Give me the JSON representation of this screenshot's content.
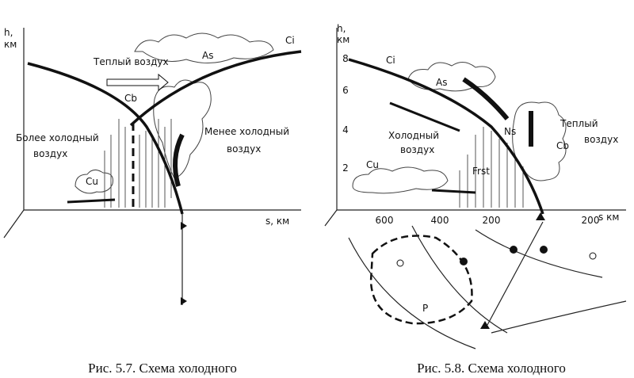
{
  "figure_left": {
    "axis_y": [
      "h,",
      "км"
    ],
    "axis_x": "s, км",
    "warm_air": "Теплый воздух",
    "as": "As",
    "ci": "Ci",
    "cb": "Cb",
    "cu": "Cu",
    "colder_air": [
      "Более холодный",
      "воздух"
    ],
    "less_cold_air": [
      "Менее холодный",
      "воздух"
    ],
    "caption": "Рис. 5.7. Схема холодного"
  },
  "figure_right": {
    "axis_y": [
      "h,",
      "км"
    ],
    "yticks": [
      "8",
      "6",
      "4",
      "2"
    ],
    "xticks": [
      "600",
      "400",
      "200",
      "200"
    ],
    "axis_x": "s км",
    "ci": "Ci",
    "as": "As",
    "ns": "Ns",
    "cb": "Cb",
    "cu": "Cu",
    "frst": "Frst",
    "warm_air": [
      "Теплый",
      "воздух"
    ],
    "cold_air": [
      "Холодный",
      "воздух"
    ],
    "pressure": "P",
    "caption": "Рис. 5.8. Схема холодного"
  }
}
